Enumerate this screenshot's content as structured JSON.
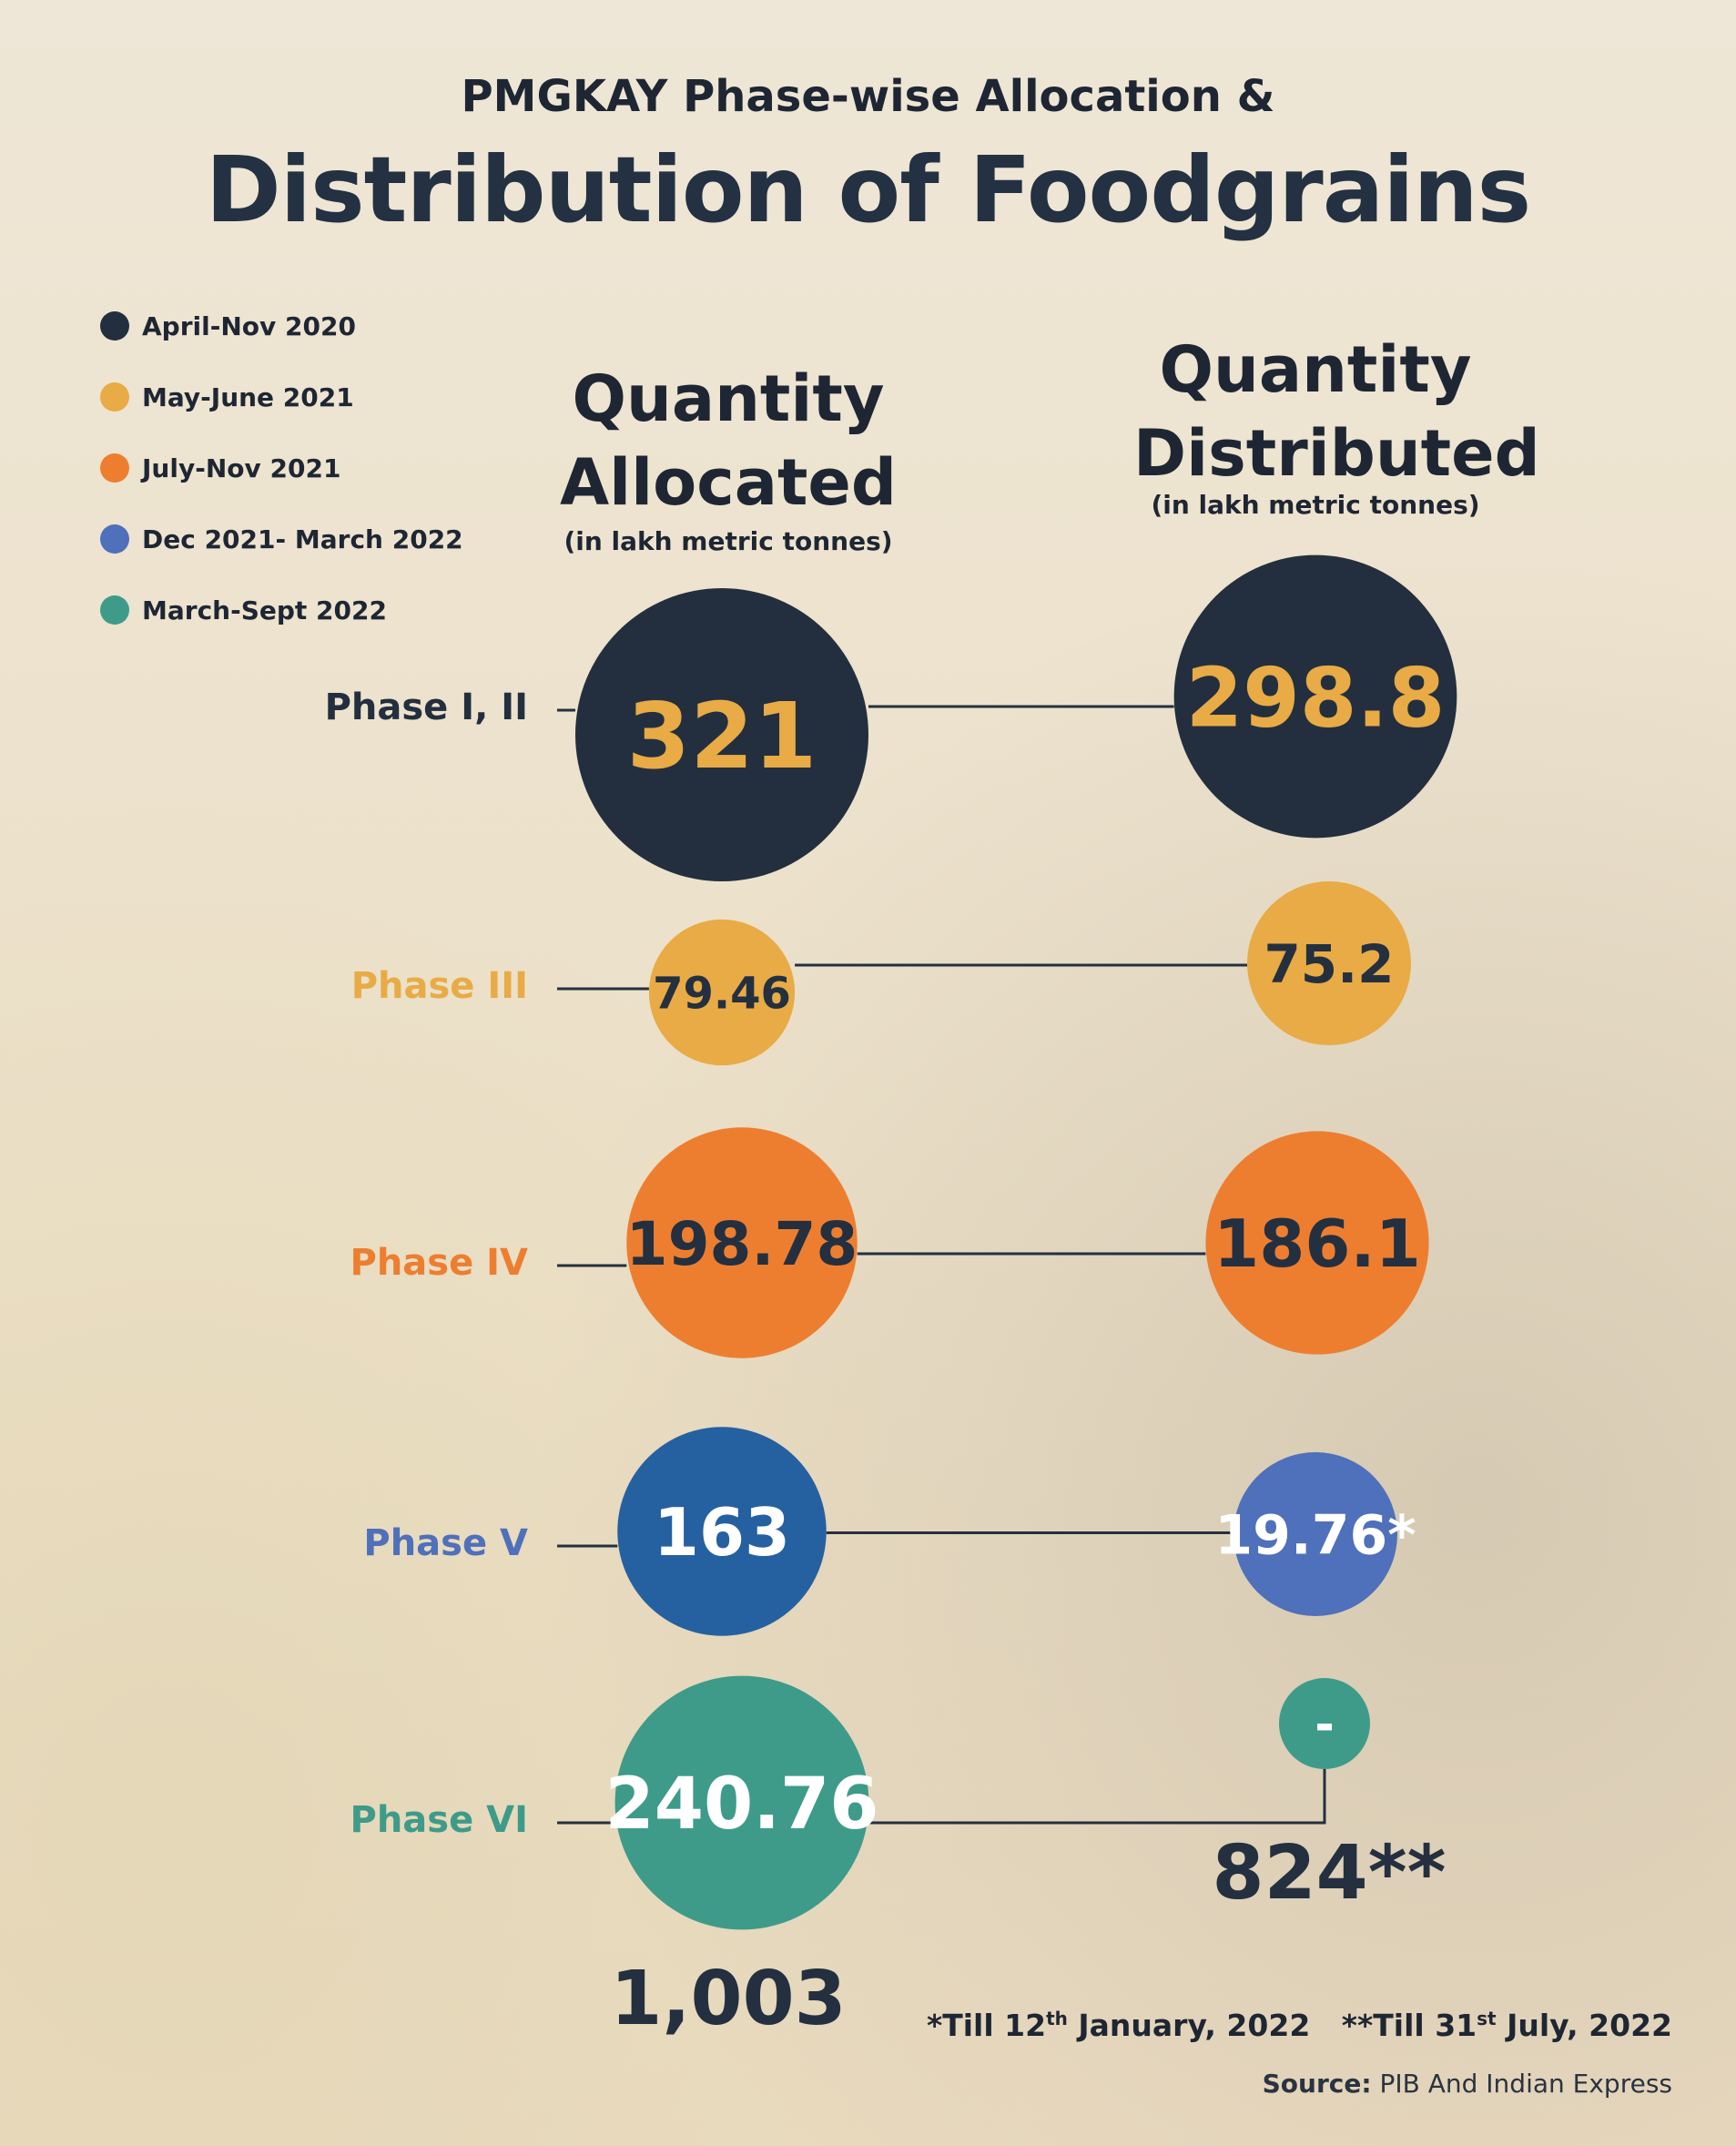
{
  "title_small": "PMGKAY Phase-wise Allocation &",
  "title_big": "Distribution of Foodgrains",
  "legend": [
    {
      "label": "April-Nov 2020",
      "color": "#232f3e"
    },
    {
      "label": "May-June 2021",
      "color": "#e8ab45"
    },
    {
      "label": "July-Nov 2021",
      "color": "#ed7e30"
    },
    {
      "label": "Dec 2021- March 2022",
      "color": "#4f70ba"
    },
    {
      "label": "March-Sept 2022",
      "color": "#3e9b89"
    }
  ],
  "columns": {
    "allocated_line1": "Quantity",
    "allocated_line2": "Allocated",
    "allocated_unit": "(in lakh metric tonnes)",
    "distributed_line1": "Quantity",
    "distributed_line2": "Distributed",
    "distributed_unit": "(in lakh metric tonnes)"
  },
  "chart_data": {
    "type": "bubble-comparison",
    "title": "PMGKAY Phase-wise Allocation & Distribution of Foodgrains",
    "unit": "(in lakh metric tonnes)",
    "series": [
      "Quantity Allocated",
      "Quantity Distributed"
    ],
    "phases": [
      {
        "name": "Phase I, II",
        "period": "April-Nov 2020",
        "allocated": 321,
        "allocated_label": "321",
        "distributed": 298.8,
        "distributed_label": "298.8",
        "color": "#232f3e",
        "label_color": "#232f3e",
        "value_color_alloc": "#e8ab45",
        "value_color_dist": "#e8ab45"
      },
      {
        "name": "Phase III",
        "period": "May-June 2021",
        "allocated": 79.46,
        "allocated_label": "79.46",
        "distributed": 75.2,
        "distributed_label": "75.2",
        "color": "#e8ab45",
        "label_color": "#e8ab45",
        "value_color_alloc": "#24303f",
        "value_color_dist": "#24303f"
      },
      {
        "name": "Phase IV",
        "period": "July-Nov 2021",
        "allocated": 198.78,
        "allocated_label": "198.78",
        "distributed": 186.1,
        "distributed_label": "186.1",
        "color": "#ed7e30",
        "label_color": "#ed7e30",
        "value_color_alloc": "#24303f",
        "value_color_dist": "#24303f"
      },
      {
        "name": "Phase V",
        "period": "Dec 2021- March 2022",
        "allocated": 163,
        "allocated_label": "163",
        "distributed": 19.76,
        "distributed_label": "19.76*",
        "color": "#2561a0",
        "dist_color": "#4f70ba",
        "label_color": "#4f70ba",
        "value_color_alloc": "#ffffff",
        "value_color_dist": "#ffffff"
      },
      {
        "name": "Phase VI",
        "period": "March-Sept 2022",
        "allocated": 240.76,
        "allocated_label": "240.76",
        "distributed": null,
        "distributed_label": "-",
        "color": "#3e9b89",
        "label_color": "#3e9b89",
        "value_color_alloc": "#ffffff",
        "value_color_dist": "#ffffff"
      }
    ],
    "total_allocated": "1,003",
    "total_distributed": "824**"
  },
  "footnotes": {
    "note1_pre": "*Till 12",
    "note1_sup": "th",
    "note1_post": " January, 2022",
    "note2_pre": "**Till 31",
    "note2_sup": "st",
    "note2_post": " July, 2022"
  },
  "source": {
    "label": "Source:",
    "text": "PIB And Indian Express"
  }
}
